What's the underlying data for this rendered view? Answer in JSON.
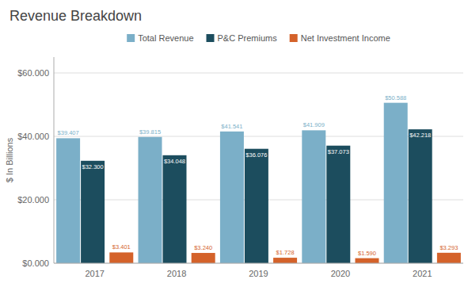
{
  "chart_data": {
    "type": "bar",
    "title": "Revenue Breakdown",
    "categories": [
      "2017",
      "2018",
      "2019",
      "2020",
      "2021"
    ],
    "series": [
      {
        "name": "Total Revenue",
        "color": "#7bafc8",
        "values": [
          39.407,
          39.815,
          41.541,
          41.909,
          50.588
        ],
        "value_labels": [
          "$39.407",
          "$39.815",
          "$41.541",
          "$41.909",
          "$50.588"
        ]
      },
      {
        "name": "P&C Premiums",
        "color": "#1c4d5e",
        "values": [
          32.3,
          34.048,
          36.076,
          37.073,
          42.218
        ],
        "value_labels": [
          "$32.300",
          "$34.048",
          "$36.076",
          "$37.073",
          "$42.218"
        ]
      },
      {
        "name": "Net Investment Income",
        "color": "#d4622a",
        "values": [
          3.401,
          3.24,
          1.728,
          1.59,
          3.293
        ],
        "value_labels": [
          "$3.401",
          "$3.240",
          "$1.728",
          "$1.590",
          "$3.293"
        ]
      }
    ],
    "ylabel": "$ In Billions",
    "ylim": [
      0,
      65
    ],
    "yticks": [
      {
        "value": 0,
        "label": "$0.000"
      },
      {
        "value": 20,
        "label": "$20.000"
      },
      {
        "value": 40,
        "label": "$40.000"
      },
      {
        "value": 60,
        "label": "$60.000"
      }
    ],
    "grid": true,
    "legend": "top",
    "data_labels": true
  }
}
